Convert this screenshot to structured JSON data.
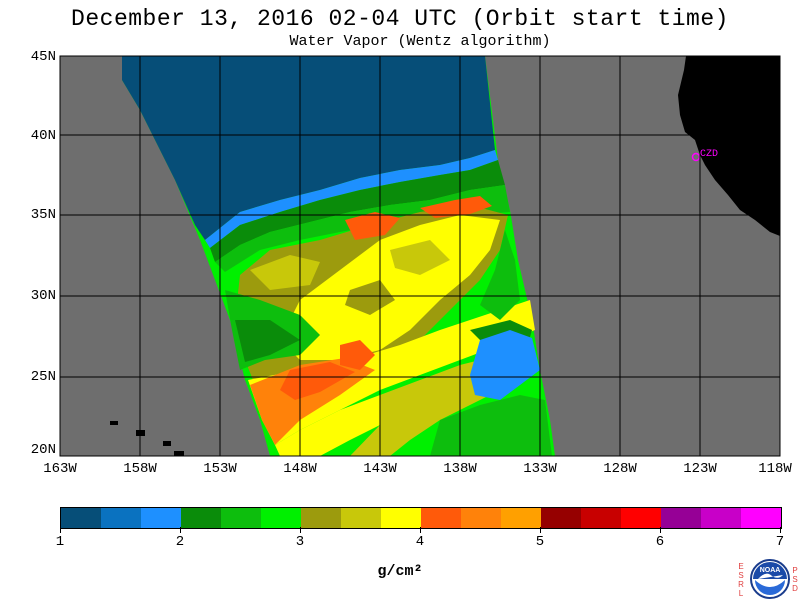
{
  "title": "December 13, 2016  02-04 UTC  (Orbit start time)",
  "subtitle": "Water Vapor (Wentz algorithm)",
  "station_label": "CZD",
  "colors": {
    "land": "#000000",
    "no_data": "#6e6e6e",
    "grid": "#000000",
    "station": "#ff00ff"
  },
  "lat_labels": [
    "45N",
    "40N",
    "35N",
    "30N",
    "25N",
    "20N"
  ],
  "lon_labels": [
    "163W",
    "158W",
    "153W",
    "148W",
    "143W",
    "138W",
    "133W",
    "128W",
    "123W",
    "118W"
  ],
  "colorbar": {
    "colors": [
      "#064e78",
      "#0a72c0",
      "#1e90ff",
      "#0a8c0a",
      "#0dbe0d",
      "#00f000",
      "#9c9b0d",
      "#c8c80a",
      "#ffff00",
      "#ff5a0a",
      "#ff820a",
      "#ffa000",
      "#960000",
      "#c80000",
      "#ff0000",
      "#960096",
      "#c800c8",
      "#ff00ff"
    ],
    "labels": [
      "1",
      "2",
      "3",
      "4",
      "5",
      "6",
      "7"
    ],
    "units": "g/cm²"
  },
  "logo": {
    "left_letters": [
      "E",
      "S",
      "R",
      "L"
    ],
    "right_letters": [
      "P",
      "S",
      "D"
    ],
    "name": "NOAA"
  }
}
